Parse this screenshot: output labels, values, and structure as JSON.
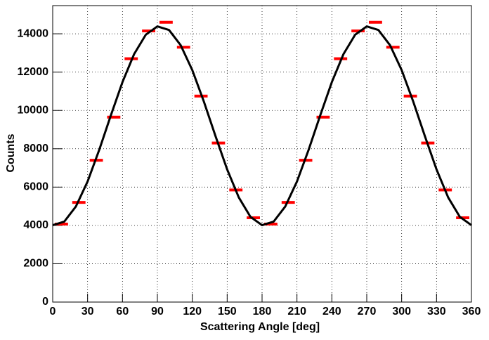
{
  "chart_data": {
    "type": "histogram",
    "x_label": "Scattering Angle [deg]",
    "y_label": "Counts",
    "bins": [
      0,
      15,
      30,
      45,
      60,
      75,
      90,
      105,
      120,
      135,
      150,
      165,
      180,
      195,
      210,
      225,
      240,
      255,
      270,
      285,
      300,
      315,
      330,
      345,
      360
    ],
    "values": [
      4070,
      5200,
      7400,
      9650,
      12700,
      14150,
      14600,
      13300,
      10750,
      8300,
      5850,
      4400,
      4070,
      5200,
      7400,
      9650,
      12700,
      14150,
      14600,
      13300,
      10750,
      8300,
      5850,
      4400
    ],
    "color": "#ff0000",
    "fit": {
      "color": "#000000",
      "x": [
        0,
        10,
        20,
        30,
        40,
        50,
        60,
        70,
        80,
        90,
        100,
        110,
        120,
        130,
        140,
        150,
        160,
        170,
        180,
        190,
        200,
        210,
        220,
        230,
        240,
        250,
        260,
        270,
        280,
        290,
        300,
        310,
        320,
        330,
        340,
        350,
        360
      ],
      "values": [
        4013,
        4201,
        4993,
        6292,
        7942,
        9743,
        11480,
        12940,
        13950,
        14387,
        14199,
        13407,
        12108,
        10458,
        8657,
        6920,
        5460,
        4450,
        4013,
        4201,
        4993,
        6292,
        7942,
        9743,
        11480,
        12940,
        13950,
        14387,
        14199,
        13407,
        12108,
        10458,
        8657,
        6920,
        5460,
        4450,
        4013
      ]
    },
    "xlim": [
      0,
      360
    ],
    "xticks": [
      0,
      30,
      60,
      90,
      120,
      150,
      180,
      210,
      240,
      270,
      300,
      330,
      360
    ],
    "ylim": [
      0,
      15470
    ],
    "yticks": [
      0,
      2000,
      4000,
      6000,
      8000,
      10000,
      12000,
      14000
    ],
    "grid": true
  }
}
